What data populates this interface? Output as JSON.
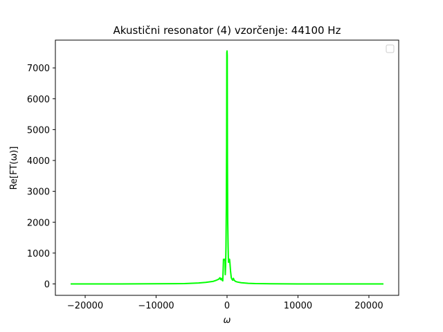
{
  "chart_data": {
    "type": "line",
    "title": "Akustični resonator (4) vzorčenje: 44100 Hz",
    "xlabel": "ω",
    "ylabel": "Re[FT(ω)]",
    "xlim": [
      -24200,
      24200
    ],
    "ylim": [
      -370,
      7900
    ],
    "xticks": [
      -20000,
      -10000,
      0,
      10000,
      20000
    ],
    "xtick_labels": [
      "−20000",
      "−10000",
      "0",
      "10000",
      "20000"
    ],
    "yticks": [
      0,
      1000,
      2000,
      3000,
      4000,
      5000,
      6000,
      7000
    ],
    "ytick_labels": [
      "0",
      "1000",
      "2000",
      "3000",
      "4000",
      "5000",
      "6000",
      "7000"
    ],
    "grid": false,
    "legend": {
      "position": "top-right",
      "entries": []
    },
    "series": [
      {
        "color": "#00ff00",
        "x": [
          -22050,
          -15000,
          -10000,
          -6000,
          -4000,
          -3000,
          -2000,
          -1500,
          -1200,
          -1000,
          -900,
          -800,
          -700,
          -600,
          -500,
          -400,
          -350,
          -320,
          -300,
          -280,
          -250,
          -200,
          -150,
          -100,
          -60,
          -30,
          0,
          30,
          60,
          100,
          150,
          200,
          250,
          280,
          300,
          320,
          350,
          400,
          500,
          600,
          700,
          800,
          900,
          1000,
          1200,
          1500,
          2000,
          3000,
          4000,
          6000,
          10000,
          15000,
          22050
        ],
        "y": [
          0,
          0,
          5,
          10,
          30,
          50,
          80,
          120,
          150,
          200,
          140,
          180,
          120,
          100,
          800,
          780,
          790,
          800,
          780,
          800,
          300,
          600,
          1200,
          2500,
          4500,
          7500,
          7550,
          7400,
          4000,
          2000,
          1200,
          700,
          800,
          790,
          800,
          780,
          800,
          700,
          400,
          200,
          150,
          120,
          180,
          120,
          80,
          60,
          40,
          20,
          10,
          5,
          0,
          0,
          0
        ]
      }
    ]
  }
}
